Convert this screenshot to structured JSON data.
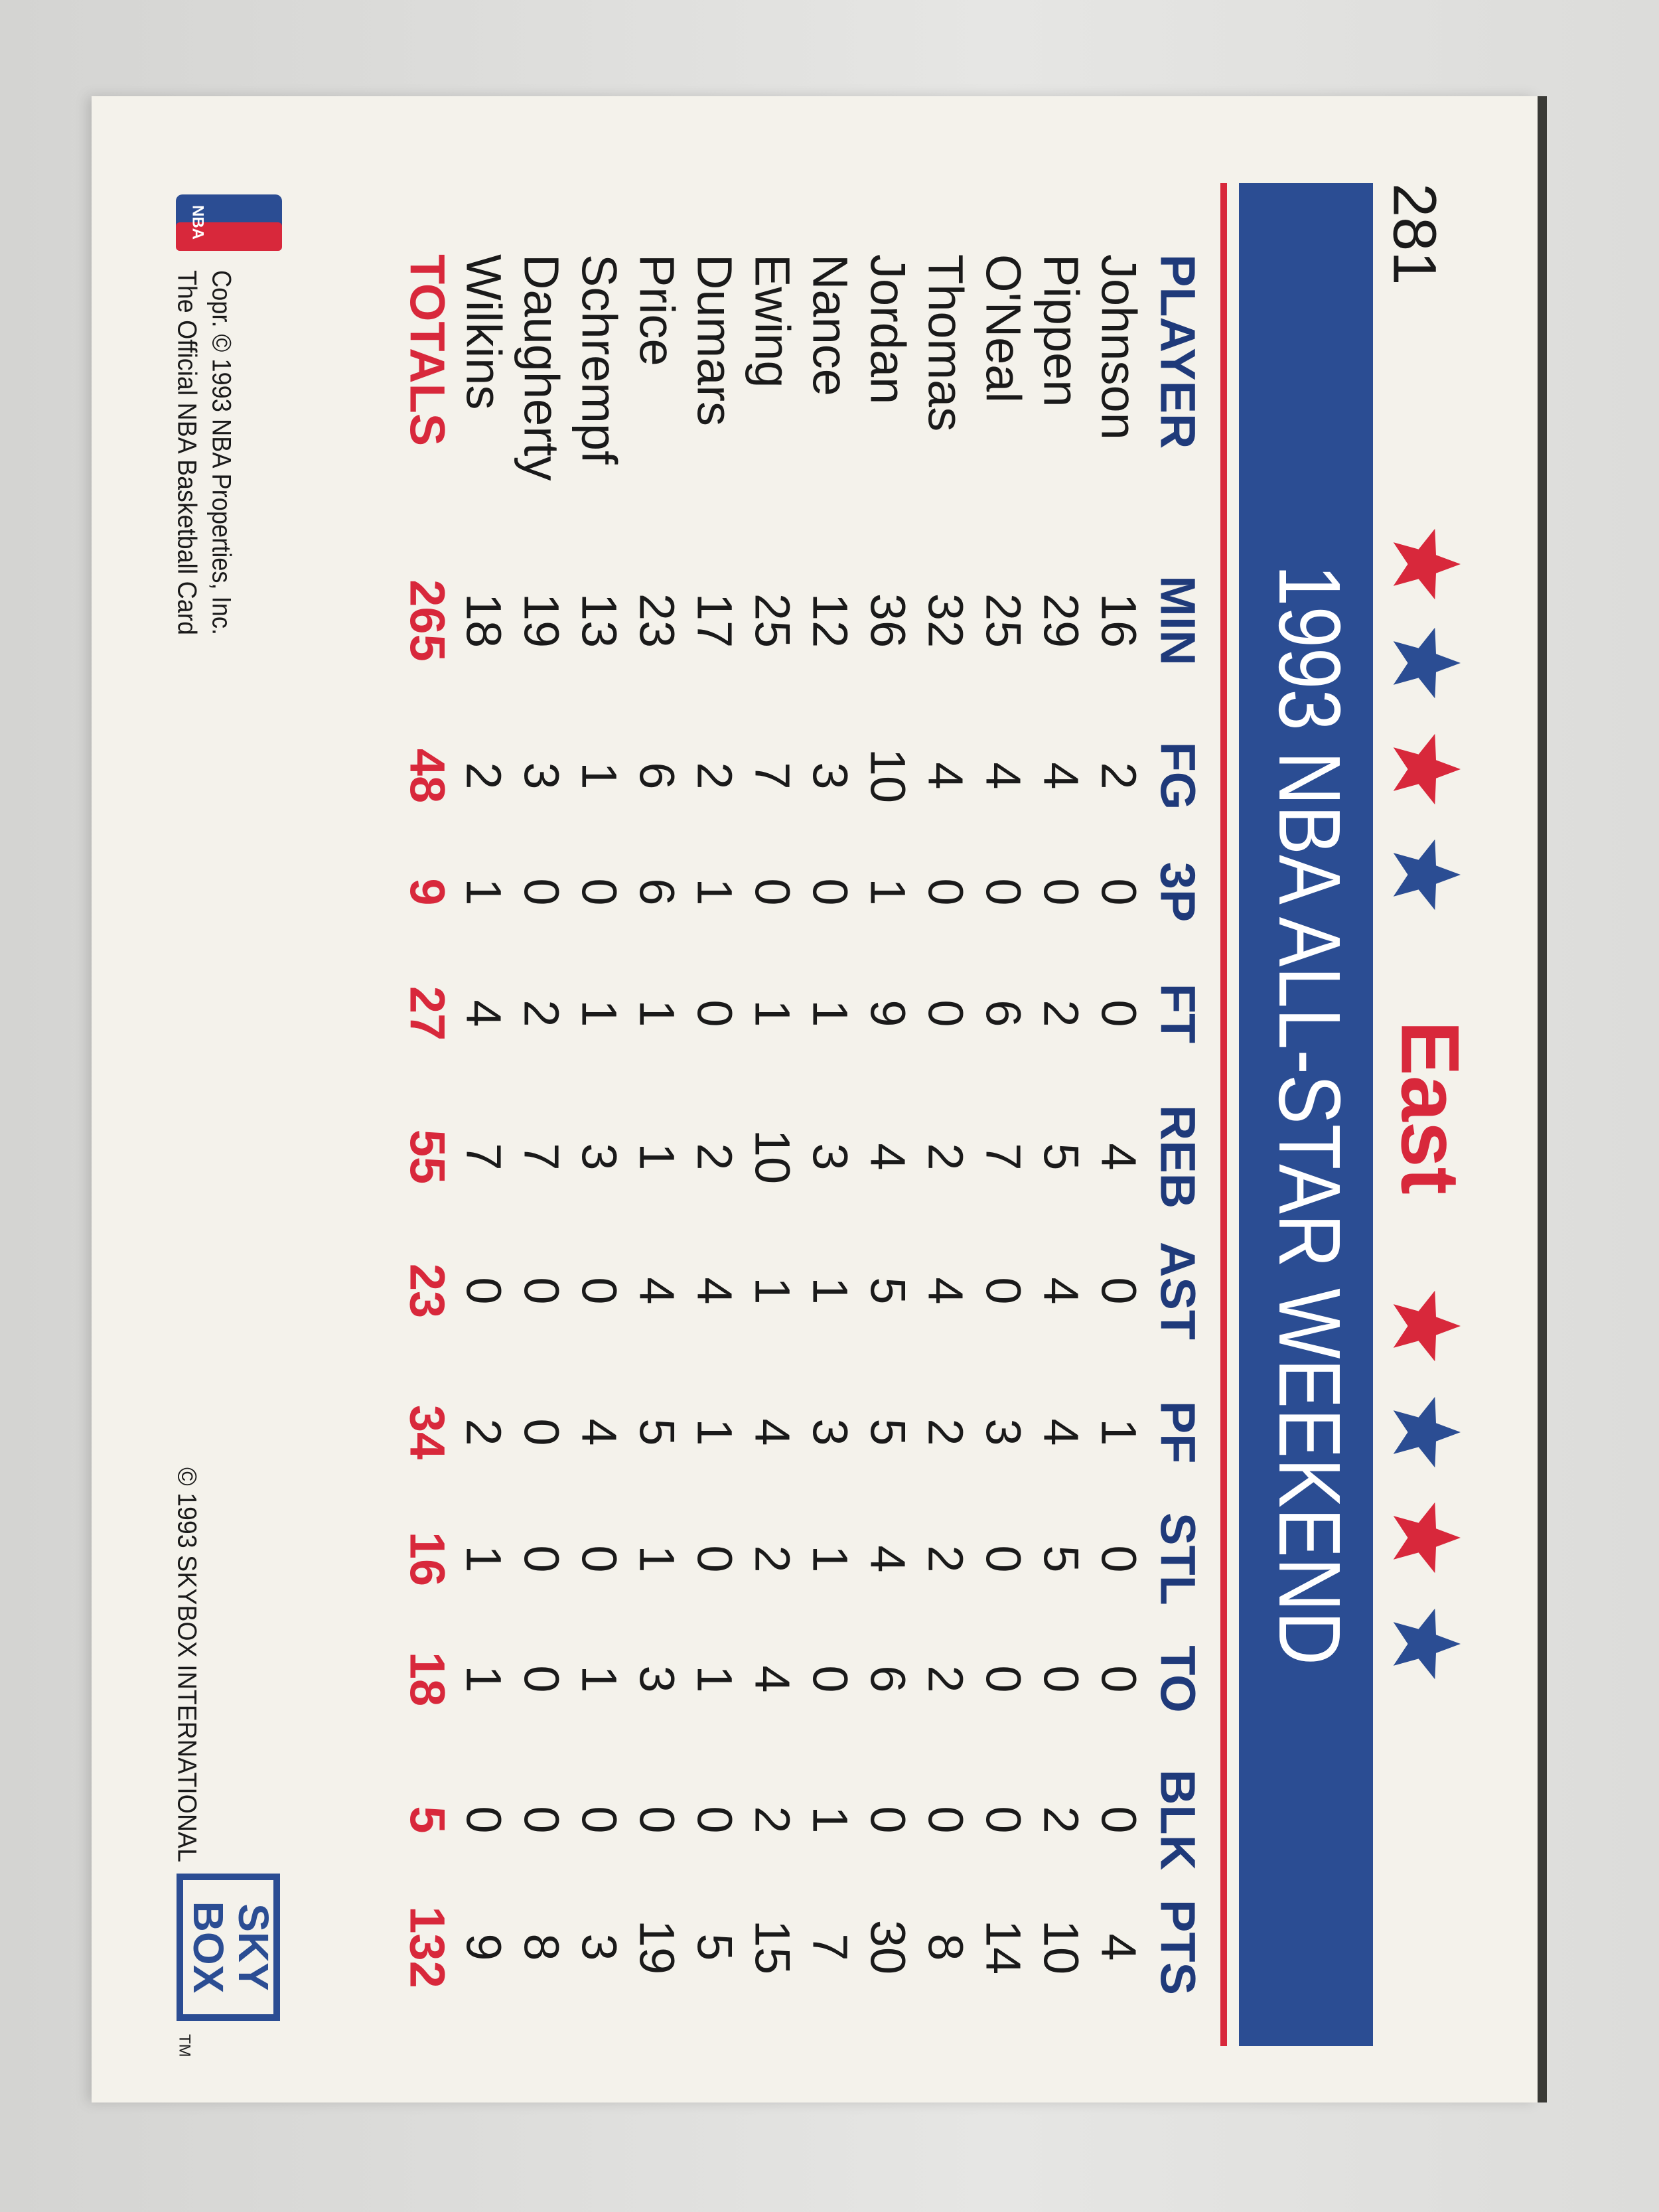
{
  "card_number": "281",
  "team": "East",
  "title": "1993 NBA ALL-STAR WEEKEND",
  "table": {
    "header": [
      "PLAYER",
      "MIN",
      "FG",
      "3P",
      "FT",
      "REB",
      "AST",
      "PF",
      "STL",
      "TO",
      "BLK",
      "PTS"
    ],
    "rows": [
      [
        "Johnson",
        16,
        2,
        0,
        0,
        4,
        0,
        1,
        0,
        0,
        0,
        4
      ],
      [
        "Pippen",
        29,
        4,
        0,
        2,
        5,
        4,
        4,
        5,
        0,
        2,
        10
      ],
      [
        "O'Neal",
        25,
        4,
        0,
        6,
        7,
        0,
        3,
        0,
        0,
        0,
        14
      ],
      [
        "Thomas",
        32,
        4,
        0,
        0,
        2,
        4,
        2,
        2,
        2,
        0,
        8
      ],
      [
        "Jordan",
        36,
        10,
        1,
        9,
        4,
        5,
        5,
        4,
        6,
        0,
        30
      ],
      [
        "Nance",
        12,
        3,
        0,
        1,
        3,
        1,
        3,
        1,
        0,
        1,
        7
      ],
      [
        "Ewing",
        25,
        7,
        0,
        1,
        10,
        1,
        4,
        2,
        4,
        2,
        15
      ],
      [
        "Dumars",
        17,
        2,
        1,
        0,
        2,
        4,
        1,
        0,
        1,
        0,
        5
      ],
      [
        "Price",
        23,
        6,
        6,
        1,
        1,
        4,
        5,
        1,
        3,
        0,
        19
      ],
      [
        "Schrempf",
        13,
        1,
        0,
        1,
        3,
        0,
        4,
        0,
        1,
        0,
        3
      ],
      [
        "Daugherty",
        19,
        3,
        0,
        2,
        7,
        0,
        0,
        0,
        0,
        0,
        8
      ],
      [
        "Wilkins",
        18,
        2,
        1,
        4,
        7,
        0,
        2,
        1,
        1,
        0,
        9
      ]
    ],
    "totals": [
      "TOTALS",
      265,
      48,
      9,
      27,
      55,
      23,
      34,
      16,
      18,
      5,
      132
    ]
  },
  "footer": {
    "nba_logo": "NBA",
    "copyright_lines": [
      "Copr. © 1993 NBA Properties, Inc.",
      "The Official NBA Basketball Card"
    ],
    "skybox_copyright": "© 1993 SKYBOX INTERNATIONAL",
    "skybox_logo": [
      "SKY",
      "BOX"
    ],
    "trademark": "TM"
  }
}
